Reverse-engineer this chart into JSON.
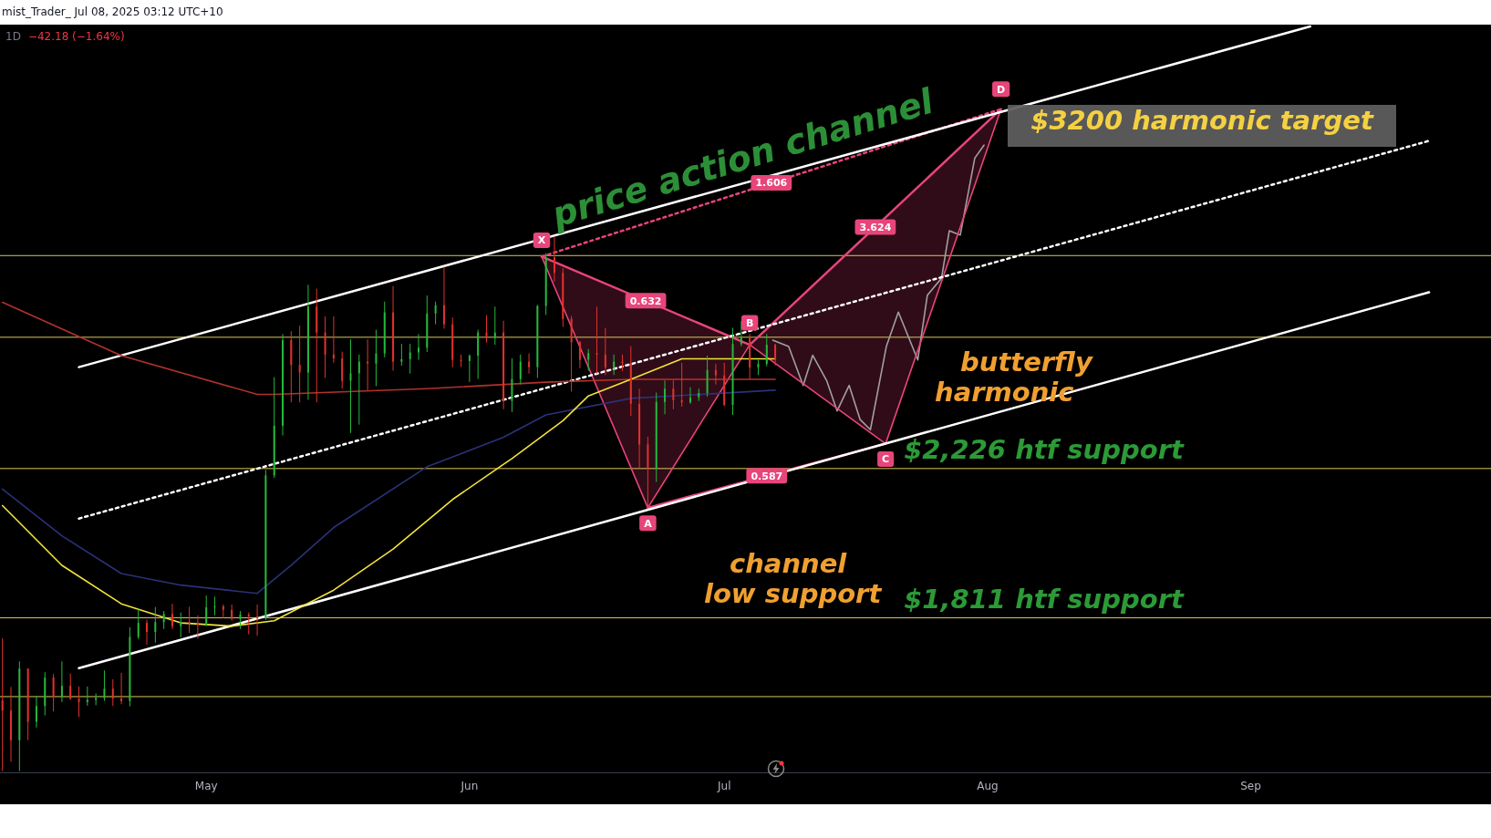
{
  "chart_data": {
    "type": "candlestick",
    "title": "1D",
    "subtitle": "−42.18 (−1.64%)",
    "x": [
      "2025-04-07",
      "2025-04-08",
      "2025-04-09",
      "2025-04-10",
      "2025-04-11",
      "2025-04-12",
      "2025-04-13",
      "2025-04-14",
      "2025-04-15",
      "2025-04-16",
      "2025-04-17",
      "2025-04-18",
      "2025-04-19",
      "2025-04-20",
      "2025-04-21",
      "2025-04-22",
      "2025-04-23",
      "2025-04-24",
      "2025-04-25",
      "2025-04-26",
      "2025-04-27",
      "2025-04-28",
      "2025-04-29",
      "2025-04-30",
      "2025-05-01",
      "2025-05-02",
      "2025-05-03",
      "2025-05-04",
      "2025-05-05",
      "2025-05-06",
      "2025-05-07",
      "2025-05-08",
      "2025-05-09",
      "2025-05-10",
      "2025-05-11",
      "2025-05-12",
      "2025-05-13",
      "2025-05-14",
      "2025-05-15",
      "2025-05-16",
      "2025-05-17",
      "2025-05-18",
      "2025-05-19",
      "2025-05-20",
      "2025-05-21",
      "2025-05-22",
      "2025-05-23",
      "2025-05-24",
      "2025-05-25",
      "2025-05-26",
      "2025-05-27",
      "2025-05-28",
      "2025-05-29",
      "2025-05-30",
      "2025-05-31",
      "2025-06-01",
      "2025-06-02",
      "2025-06-03",
      "2025-06-04",
      "2025-06-05",
      "2025-06-06",
      "2025-06-07",
      "2025-06-08",
      "2025-06-09",
      "2025-06-10",
      "2025-06-11",
      "2025-06-12",
      "2025-06-13",
      "2025-06-14",
      "2025-06-15",
      "2025-06-16",
      "2025-06-17",
      "2025-06-18",
      "2025-06-19",
      "2025-06-20",
      "2025-06-21",
      "2025-06-22",
      "2025-06-23",
      "2025-06-24",
      "2025-06-25",
      "2025-06-26",
      "2025-06-27",
      "2025-06-28",
      "2025-06-29",
      "2025-06-30",
      "2025-07-01",
      "2025-07-02",
      "2025-07-03",
      "2025-07-04",
      "2025-07-05",
      "2025-07-06",
      "2025-07-07"
    ],
    "ohlc": [
      [
        1581,
        1754,
        1385,
        1553
      ],
      [
        1553,
        1619,
        1411,
        1471
      ],
      [
        1471,
        1690,
        1385,
        1670
      ],
      [
        1670,
        1670,
        1471,
        1522
      ],
      [
        1522,
        1594,
        1506,
        1566
      ],
      [
        1566,
        1660,
        1540,
        1645
      ],
      [
        1645,
        1655,
        1551,
        1591
      ],
      [
        1591,
        1690,
        1577,
        1622
      ],
      [
        1622,
        1656,
        1583,
        1586
      ],
      [
        1586,
        1620,
        1535,
        1577
      ],
      [
        1577,
        1620,
        1567,
        1583
      ],
      [
        1583,
        1601,
        1568,
        1588
      ],
      [
        1588,
        1665,
        1580,
        1614
      ],
      [
        1614,
        1640,
        1566,
        1587
      ],
      [
        1587,
        1658,
        1571,
        1579
      ],
      [
        1580,
        1785,
        1565,
        1758
      ],
      [
        1758,
        1835,
        1752,
        1797
      ],
      [
        1797,
        1806,
        1737,
        1772
      ],
      [
        1772,
        1841,
        1742,
        1799
      ],
      [
        1799,
        1830,
        1780,
        1822
      ],
      [
        1822,
        1850,
        1780,
        1788
      ],
      [
        1788,
        1826,
        1757,
        1800
      ],
      [
        1800,
        1842,
        1769,
        1795
      ],
      [
        1795,
        1818,
        1753,
        1791
      ],
      [
        1791,
        1873,
        1788,
        1840
      ],
      [
        1840,
        1870,
        1818,
        1843
      ],
      [
        1843,
        1848,
        1810,
        1833
      ],
      [
        1833,
        1848,
        1803,
        1808
      ],
      [
        1808,
        1830,
        1780,
        1820
      ],
      [
        1820,
        1826,
        1765,
        1815
      ],
      [
        1815,
        1848,
        1761,
        1810
      ],
      [
        1810,
        2222,
        1805,
        2207
      ],
      [
        2207,
        2480,
        2200,
        2345
      ],
      [
        2345,
        2600,
        2318,
        2583
      ],
      [
        2583,
        2608,
        2410,
        2514
      ],
      [
        2514,
        2623,
        2410,
        2493
      ],
      [
        2493,
        2737,
        2417,
        2676
      ],
      [
        2676,
        2726,
        2410,
        2604
      ],
      [
        2604,
        2649,
        2478,
        2543
      ],
      [
        2543,
        2649,
        2520,
        2532
      ],
      [
        2532,
        2551,
        2448,
        2470
      ],
      [
        2470,
        2585,
        2325,
        2491
      ],
      [
        2491,
        2543,
        2348,
        2523
      ],
      [
        2523,
        2585,
        2444,
        2518
      ],
      [
        2518,
        2612,
        2455,
        2546
      ],
      [
        2546,
        2690,
        2535,
        2660
      ],
      [
        2660,
        2733,
        2498,
        2523
      ],
      [
        2523,
        2573,
        2512,
        2530
      ],
      [
        2530,
        2573,
        2490,
        2549
      ],
      [
        2549,
        2600,
        2528,
        2562
      ],
      [
        2562,
        2707,
        2550,
        2657
      ],
      [
        2657,
        2690,
        2627,
        2680
      ],
      [
        2680,
        2787,
        2615,
        2627
      ],
      [
        2627,
        2646,
        2508,
        2528
      ],
      [
        2528,
        2543,
        2508,
        2525
      ],
      [
        2525,
        2543,
        2467,
        2540
      ],
      [
        2540,
        2612,
        2475,
        2604
      ],
      [
        2604,
        2652,
        2576,
        2589
      ],
      [
        2589,
        2676,
        2570,
        2604
      ],
      [
        2604,
        2637,
        2391,
        2414
      ],
      [
        2414,
        2532,
        2383,
        2475
      ],
      [
        2475,
        2543,
        2460,
        2523
      ],
      [
        2523,
        2546,
        2490,
        2508
      ],
      [
        2508,
        2681,
        2478,
        2678
      ],
      [
        2678,
        2825,
        2653,
        2813
      ],
      [
        2813,
        2870,
        2745,
        2770
      ],
      [
        2770,
        2783,
        2620,
        2642
      ],
      [
        2642,
        2650,
        2440,
        2577
      ],
      [
        2577,
        2581,
        2505,
        2528
      ],
      [
        2528,
        2558,
        2498,
        2547
      ],
      [
        2547,
        2676,
        2490,
        2543
      ],
      [
        2543,
        2617,
        2486,
        2507
      ],
      [
        2507,
        2543,
        2486,
        2523
      ],
      [
        2523,
        2543,
        2497,
        2520
      ],
      [
        2520,
        2566,
        2372,
        2406
      ],
      [
        2406,
        2448,
        2227,
        2293
      ],
      [
        2293,
        2315,
        2117,
        2227
      ],
      [
        2227,
        2437,
        2189,
        2411
      ],
      [
        2411,
        2471,
        2377,
        2448
      ],
      [
        2448,
        2471,
        2391,
        2416
      ],
      [
        2416,
        2520,
        2398,
        2410
      ],
      [
        2410,
        2452,
        2406,
        2424
      ],
      [
        2424,
        2448,
        2414,
        2436
      ],
      [
        2436,
        2540,
        2426,
        2500
      ],
      [
        2500,
        2517,
        2460,
        2485
      ],
      [
        2485,
        2520,
        2399,
        2403
      ],
      [
        2403,
        2617,
        2375,
        2572
      ],
      [
        2572,
        2636,
        2566,
        2590
      ],
      [
        2590,
        2600,
        2475,
        2507
      ],
      [
        2507,
        2528,
        2486,
        2517
      ],
      [
        2517,
        2600,
        2510,
        2570
      ],
      [
        2570,
        2573,
        2512,
        2528
      ]
    ],
    "colors": [
      "#e2322c",
      "#e2322c",
      "#26b83c",
      "#e2322c",
      "#26b83c",
      "#26b83c",
      "#e2322c",
      "#26b83c",
      "#e2322c",
      "#e2322c",
      "#26b83c",
      "#26b83c",
      "#26b83c",
      "#e2322c",
      "#e2322c",
      "#26b83c",
      "#26b83c",
      "#e2322c",
      "#26b83c",
      "#26b83c",
      "#e2322c",
      "#26b83c",
      "#e2322c",
      "#e2322c",
      "#26b83c",
      "#26b83c",
      "#e2322c",
      "#e2322c",
      "#26b83c",
      "#e2322c",
      "#e2322c",
      "#26b83c",
      "#26b83c",
      "#26b83c",
      "#e2322c",
      "#e2322c",
      "#26b83c",
      "#e2322c",
      "#e2322c",
      "#e2322c",
      "#e2322c",
      "#26b83c",
      "#26b83c",
      "#e2322c",
      "#26b83c",
      "#26b83c",
      "#e2322c",
      "#26b83c",
      "#26b83c",
      "#26b83c",
      "#26b83c",
      "#26b83c",
      "#e2322c",
      "#e2322c",
      "#e2322c",
      "#26b83c",
      "#26b83c",
      "#e2322c",
      "#26b83c",
      "#e2322c",
      "#26b83c",
      "#26b83c",
      "#e2322c",
      "#26b83c",
      "#26b83c",
      "#e2322c",
      "#e2322c",
      "#e2322c",
      "#e2322c",
      "#26b83c",
      "#e2322c",
      "#e2322c",
      "#26b83c",
      "#e2322c",
      "#e2322c",
      "#e2322c",
      "#e2322c",
      "#26b83c",
      "#26b83c",
      "#e2322c",
      "#e2322c",
      "#26b83c",
      "#26b83c",
      "#26b83c",
      "#e2322c",
      "#e2322c",
      "#26b83c",
      "#26b83c",
      "#e2322c",
      "#26b83c",
      "#26b83c",
      "#e2322c"
    ],
    "series": [
      {
        "type": "line",
        "color": "#f2e33a",
        "x": [
          "2025-04-07",
          "2025-04-14",
          "2025-04-21",
          "2025-04-28",
          "2025-05-04",
          "2025-05-09",
          "2025-05-16",
          "2025-05-23",
          "2025-05-30",
          "2025-06-06",
          "2025-06-12",
          "2025-06-15",
          "2025-06-20",
          "2025-06-26",
          "2025-07-01",
          "2025-07-07"
        ],
        "values": [
          2123,
          1957,
          1850,
          1797,
          1788,
          1803,
          1888,
          2002,
          2140,
          2254,
          2359,
          2428,
          2474,
          2531,
          2531,
          2531
        ]
      },
      {
        "type": "line",
        "color": "#b3322b",
        "x": [
          "2025-04-07",
          "2025-04-21",
          "2025-05-07",
          "2025-05-09",
          "2025-05-27",
          "2025-06-10",
          "2025-06-20",
          "2025-07-07"
        ],
        "values": [
          2688,
          2540,
          2432,
          2432,
          2448,
          2466,
          2474,
          2474
        ]
      },
      {
        "type": "line",
        "color": "#2a3277",
        "x": [
          "2025-04-07",
          "2025-04-14",
          "2025-04-21",
          "2025-04-28",
          "2025-05-07",
          "2025-05-11",
          "2025-05-16",
          "2025-05-27",
          "2025-06-05",
          "2025-06-10",
          "2025-06-20",
          "2025-07-07"
        ],
        "values": [
          2169,
          2039,
          1934,
          1902,
          1879,
          1957,
          2062,
          2231,
          2313,
          2375,
          2421,
          2444
        ]
      },
      {
        "type": "line",
        "color": "#ffffff",
        "x": [
          "2025-04-16",
          "2025-09-08"
        ],
        "values": [
          2508,
          3455
        ]
      },
      {
        "type": "line",
        "color": "#ffffff",
        "x": [
          "2025-04-16",
          "2025-09-22"
        ],
        "values": [
          1671,
          2716
        ]
      },
      {
        "type": "line",
        "color": "#ffffff",
        "line_style": "dotted",
        "x": [
          "2025-04-16",
          "2025-09-22"
        ],
        "values": [
          2087,
          3137
        ]
      },
      {
        "type": "line",
        "color": "#e8457a",
        "x": [
          "2025-06-09T12:00",
          "2025-06-22",
          "2025-07-04",
          "2025-07-20",
          "2025-08-02T14:00"
        ],
        "values": [
          2815,
          2117,
          2570,
          2295,
          3225
        ]
      },
      {
        "type": "line",
        "color": "#a0a0a0",
        "x": [
          "2025-07-06T17:00",
          "2025-07-08T14:00",
          "2025-07-10T07:00",
          "2025-07-11T10:00",
          "2025-07-13T02:00",
          "2025-07-14T07:00",
          "2025-07-15T17:00",
          "2025-07-17T00:00",
          "2025-07-18T05:00",
          "2025-07-20T02:00",
          "2025-07-21T12:00",
          "2025-07-23T19:00",
          "2025-07-24T22:00",
          "2025-07-26T14:00",
          "2025-07-27T12:00",
          "2025-07-28T19:00",
          "2025-07-30T12:00",
          "2025-07-31T14:00"
        ],
        "values": [
          2583,
          2565,
          2457,
          2541,
          2469,
          2386,
          2457,
          2362,
          2334,
          2565,
          2661,
          2528,
          2708,
          2755,
          2887,
          2875,
          3089,
          3125
        ]
      },
      {
        "type": "line",
        "color": "#e8457a",
        "x": [
          "2025-06-09T12:00",
          "2025-07-04"
        ],
        "values": [
          2815,
          2570
        ]
      },
      {
        "type": "line",
        "color": "#e8457a",
        "x": [
          "2025-06-22",
          "2025-07-20"
        ],
        "values": [
          2117,
          2295
        ]
      },
      {
        "type": "line",
        "color": "#e8457a",
        "x": [
          "2025-07-04",
          "2025-08-02T14:00"
        ],
        "values": [
          2570,
          3225
        ]
      },
      {
        "type": "line",
        "color": "#e8457a",
        "line_style": "dotted",
        "x": [
          "2025-06-09T12:00",
          "2025-08-02T14:00"
        ],
        "values": [
          2815,
          3225
        ]
      }
    ],
    "xlim": [
      "2025-04-06T17:00",
      "2025-09-29T07:00"
    ],
    "xticks": [
      {
        "value": "2025-05-01",
        "label": "May"
      },
      {
        "value": "2025-06-01",
        "label": "Jun"
      },
      {
        "value": "2025-07-01",
        "label": "Jul"
      },
      {
        "value": "2025-08-01",
        "label": "Aug"
      },
      {
        "value": "2025-09-01",
        "label": "Sep"
      }
    ],
    "ylim": [
      1380,
      3460
    ],
    "tick_labels": "x",
    "marker": "none",
    "ref_lines": [
      {
        "axis": "y",
        "value": 2818,
        "color": "#d9c85a"
      },
      {
        "axis": "y",
        "value": 2591,
        "color": "#d9c85a"
      },
      {
        "axis": "y",
        "value": 2226,
        "label": "$2,226 htf support",
        "color": "#d9c85a"
      },
      {
        "axis": "y",
        "value": 1811,
        "label": "$1,811 htf support",
        "color": "#d9c85a"
      },
      {
        "axis": "y",
        "value": 1592,
        "color": "#d9c85a"
      }
    ],
    "annotations": [
      "mist_Trader_ Jul 08, 2025 03:12 UTC+10",
      "butterfly harmonic",
      "channel low support",
      "$3200 harmonic target",
      {
        "text": "price action channel",
        "x": "2025-07-04",
        "y": 3024
      },
      {
        "text": "X",
        "x": "2025-06-09T12:00",
        "y": 2815
      },
      {
        "text": "A",
        "x": "2025-06-22",
        "y": 2117
      },
      {
        "text": "B",
        "x": "2025-07-04",
        "y": 2570
      },
      {
        "text": "C",
        "x": "2025-07-20",
        "y": 2295
      },
      {
        "text": "D",
        "x": "2025-08-02T14:00",
        "y": 3225
      },
      {
        "text": "0.632",
        "x": "2025-06-21T18:00",
        "y": 2692.5
      },
      {
        "text": "0.587",
        "x": "2025-07-06",
        "y": 2206
      },
      {
        "text": "3.624",
        "x": "2025-07-18T19:00",
        "y": 2897.5
      },
      {
        "text": "1.606",
        "x": "2025-07-06T13:00",
        "y": 3020
      }
    ]
  }
}
